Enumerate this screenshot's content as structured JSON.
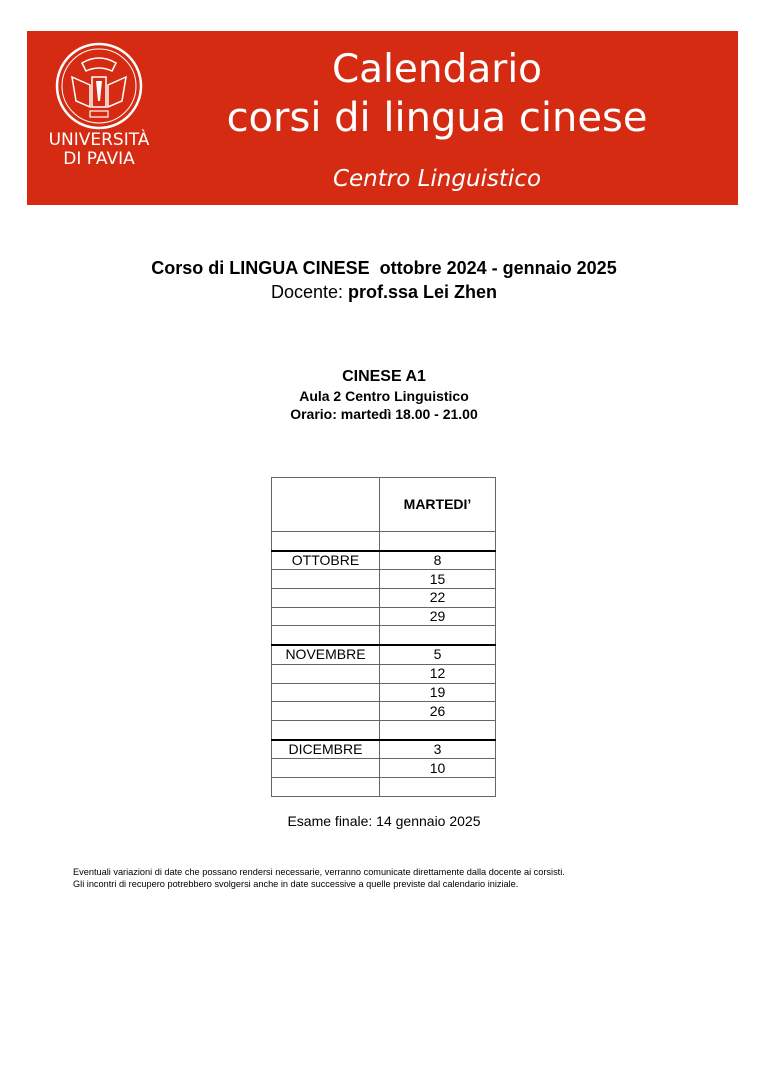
{
  "header": {
    "logo_text": [
      "UNIVERSITÀ",
      "DI PAVIA"
    ],
    "title_line1": "Calendario",
    "title_line2": "corsi di lingua cinese",
    "subtitle": "Centro Linguistico",
    "banner_color": "#d52b12"
  },
  "course": {
    "title": "Corso di LINGUA CINESE  ottobre 2024 - gennaio 2025",
    "teacher_label": "Docente: ",
    "teacher_name": "prof.ssa Lei Zhen",
    "level": "CINESE A1",
    "room": "Aula 2 Centro Linguistico",
    "schedule": "Orario: martedì 18.00 - 21.00"
  },
  "table": {
    "header_day": "MARTEDI’",
    "rows": [
      {
        "month": "",
        "day": ""
      },
      {
        "month": "OTTOBRE",
        "day": "8"
      },
      {
        "month": "",
        "day": "15"
      },
      {
        "month": "",
        "day": "22"
      },
      {
        "month": "",
        "day": "29"
      },
      {
        "month": "",
        "day": ""
      },
      {
        "month": "NOVEMBRE",
        "day": "5"
      },
      {
        "month": "",
        "day": "12"
      },
      {
        "month": "",
        "day": "19"
      },
      {
        "month": "",
        "day": "26"
      },
      {
        "month": "",
        "day": ""
      },
      {
        "month": "DICEMBRE",
        "day": "3"
      },
      {
        "month": "",
        "day": "10"
      },
      {
        "month": "",
        "day": ""
      }
    ]
  },
  "exam": "Esame finale: 14 gennaio 2025",
  "notes": [
    "Eventuali variazioni di date che possano rendersi necessarie, verranno comunicate direttamente dalla docente ai corsisti.",
    "Gli incontri di recupero potrebbero svolgersi anche in date successive a quelle previste dal calendario iniziale."
  ]
}
